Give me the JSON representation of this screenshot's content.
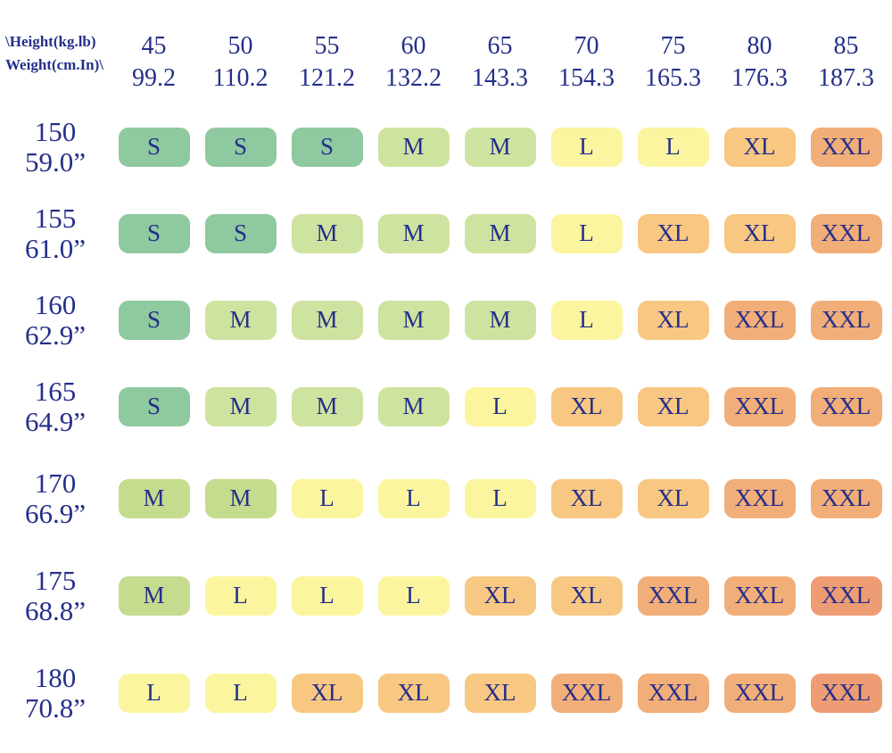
{
  "palette": {
    "text_navy": "#252f8a",
    "s": "#8fc9a0",
    "m": "#cfe3a0",
    "m2": "#c5db8e",
    "l": "#fbf5a0",
    "xl": "#f8c782",
    "xxl": "#f2ae78",
    "xxl_deep": "#ee9c74"
  },
  "header": {
    "corner_top": "\\Height(kg.lb)",
    "corner_bottom": "Weight(cm.In)\\",
    "columns": [
      {
        "kg": "45",
        "lb": "99.2"
      },
      {
        "kg": "50",
        "lb": "110.2"
      },
      {
        "kg": "55",
        "lb": "121.2"
      },
      {
        "kg": "60",
        "lb": "132.2"
      },
      {
        "kg": "65",
        "lb": "143.3"
      },
      {
        "kg": "70",
        "lb": "154.3"
      },
      {
        "kg": "75",
        "lb": "165.3"
      },
      {
        "kg": "80",
        "lb": "176.3"
      },
      {
        "kg": "85",
        "lb": "187.3"
      }
    ]
  },
  "rows": [
    {
      "cm": "150",
      "inch": "59.0”",
      "cells": [
        {
          "label": "S",
          "color": "s"
        },
        {
          "label": "S",
          "color": "s"
        },
        {
          "label": "S",
          "color": "s"
        },
        {
          "label": "M",
          "color": "m"
        },
        {
          "label": "M",
          "color": "m"
        },
        {
          "label": "L",
          "color": "l"
        },
        {
          "label": "L",
          "color": "l"
        },
        {
          "label": "XL",
          "color": "xl"
        },
        {
          "label": "XXL",
          "color": "xxl"
        }
      ]
    },
    {
      "cm": "155",
      "inch": "61.0”",
      "cells": [
        {
          "label": "S",
          "color": "s"
        },
        {
          "label": "S",
          "color": "s"
        },
        {
          "label": "M",
          "color": "m"
        },
        {
          "label": "M",
          "color": "m"
        },
        {
          "label": "M",
          "color": "m"
        },
        {
          "label": "L",
          "color": "l"
        },
        {
          "label": "XL",
          "color": "xl"
        },
        {
          "label": "XL",
          "color": "xl"
        },
        {
          "label": "XXL",
          "color": "xxl"
        }
      ]
    },
    {
      "cm": "160",
      "inch": "62.9”",
      "cells": [
        {
          "label": "S",
          "color": "s"
        },
        {
          "label": "M",
          "color": "m"
        },
        {
          "label": "M",
          "color": "m"
        },
        {
          "label": "M",
          "color": "m"
        },
        {
          "label": "M",
          "color": "m"
        },
        {
          "label": "L",
          "color": "l"
        },
        {
          "label": "XL",
          "color": "xl"
        },
        {
          "label": "XXL",
          "color": "xxl"
        },
        {
          "label": "XXL",
          "color": "xxl"
        }
      ]
    },
    {
      "cm": "165",
      "inch": "64.9”",
      "cells": [
        {
          "label": "S",
          "color": "s"
        },
        {
          "label": "M",
          "color": "m"
        },
        {
          "label": "M",
          "color": "m"
        },
        {
          "label": "M",
          "color": "m"
        },
        {
          "label": "L",
          "color": "l"
        },
        {
          "label": "XL",
          "color": "xl"
        },
        {
          "label": "XL",
          "color": "xl"
        },
        {
          "label": "XXL",
          "color": "xxl"
        },
        {
          "label": "XXL",
          "color": "xxl"
        }
      ]
    },
    {
      "cm": "170",
      "inch": "66.9”",
      "cells": [
        {
          "label": "M",
          "color": "m2"
        },
        {
          "label": "M",
          "color": "m2"
        },
        {
          "label": "L",
          "color": "l"
        },
        {
          "label": "L",
          "color": "l"
        },
        {
          "label": "L",
          "color": "l"
        },
        {
          "label": "XL",
          "color": "xl"
        },
        {
          "label": "XL",
          "color": "xl"
        },
        {
          "label": "XXL",
          "color": "xxl"
        },
        {
          "label": "XXL",
          "color": "xxl"
        }
      ]
    },
    {
      "cm": "175",
      "inch": "68.8”",
      "cells": [
        {
          "label": "M",
          "color": "m2"
        },
        {
          "label": "L",
          "color": "l"
        },
        {
          "label": "L",
          "color": "l"
        },
        {
          "label": "L",
          "color": "l"
        },
        {
          "label": "XL",
          "color": "xl"
        },
        {
          "label": "XL",
          "color": "xl"
        },
        {
          "label": "XXL",
          "color": "xxl"
        },
        {
          "label": "XXL",
          "color": "xxl"
        },
        {
          "label": "XXL",
          "color": "xxl_deep"
        }
      ]
    },
    {
      "cm": "180",
      "inch": "70.8”",
      "cells": [
        {
          "label": "L",
          "color": "l"
        },
        {
          "label": "L",
          "color": "l"
        },
        {
          "label": "XL",
          "color": "xl"
        },
        {
          "label": "XL",
          "color": "xl"
        },
        {
          "label": "XL",
          "color": "xl"
        },
        {
          "label": "XXL",
          "color": "xxl"
        },
        {
          "label": "XXL",
          "color": "xxl"
        },
        {
          "label": "XXL",
          "color": "xxl"
        },
        {
          "label": "XXL",
          "color": "xxl_deep"
        }
      ]
    }
  ],
  "chart_data": {
    "type": "table",
    "title": "Height / Weight clothing size chart",
    "columns_weight_kg": [
      45,
      50,
      55,
      60,
      65,
      70,
      75,
      80,
      85
    ],
    "columns_weight_lb": [
      99.2,
      110.2,
      121.2,
      132.2,
      143.3,
      154.3,
      165.3,
      176.3,
      187.3
    ],
    "rows_height_cm": [
      150,
      155,
      160,
      165,
      170,
      175,
      180
    ],
    "rows_height_in": [
      59.0,
      61.0,
      62.9,
      64.9,
      66.9,
      68.8,
      70.8
    ],
    "corner_labels": [
      "\\Height(kg.lb)",
      "Weight(cm.In)\\"
    ],
    "sizes": [
      [
        "S",
        "S",
        "S",
        "M",
        "M",
        "L",
        "L",
        "XL",
        "XXL"
      ],
      [
        "S",
        "S",
        "M",
        "M",
        "M",
        "L",
        "XL",
        "XL",
        "XXL"
      ],
      [
        "S",
        "M",
        "M",
        "M",
        "M",
        "L",
        "XL",
        "XXL",
        "XXL"
      ],
      [
        "S",
        "M",
        "M",
        "M",
        "L",
        "XL",
        "XL",
        "XXL",
        "XXL"
      ],
      [
        "M",
        "M",
        "L",
        "L",
        "L",
        "XL",
        "XL",
        "XXL",
        "XXL"
      ],
      [
        "M",
        "L",
        "L",
        "L",
        "XL",
        "XL",
        "XXL",
        "XXL",
        "XXL"
      ],
      [
        "L",
        "L",
        "XL",
        "XL",
        "XL",
        "XXL",
        "XXL",
        "XXL",
        "XXL"
      ]
    ],
    "legend_position": "none",
    "grid": false
  }
}
